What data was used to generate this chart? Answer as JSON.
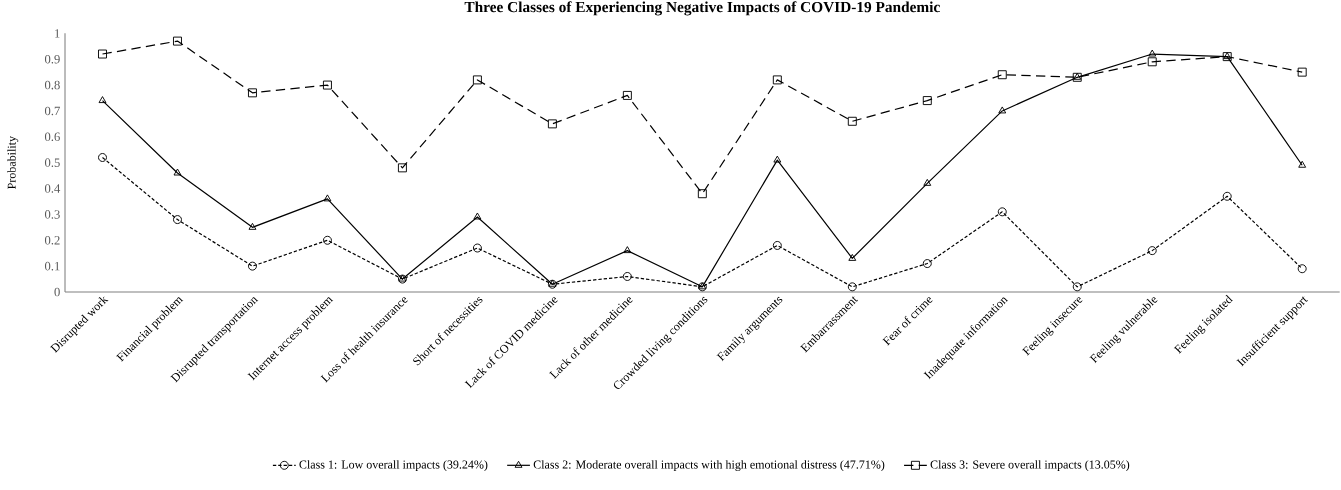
{
  "chart_data": {
    "type": "line",
    "title": "Three Classes of Experiencing Negative Impacts of COVID-19 Pandemic",
    "ylabel": "Probability",
    "categories": [
      "Disrupted work",
      "Financial problem",
      "Disrupted transportation",
      "Internet access problem",
      "Loss of health insurance",
      "Short of necessities",
      "Lack of COVID medicine",
      "Lack of other medicine",
      "Crowded living conditions",
      "Family arguments",
      "Embarrassment",
      "Fear of crime",
      "Inadequate information",
      "Feeling insecure",
      "Feeling vulnerable",
      "Feeling isolated",
      "Insufficient support"
    ],
    "series": [
      {
        "name": "Class 1: Low overall impacts (39.24%)",
        "color": "#000000",
        "marker": "circle",
        "line_style": "dotted",
        "values": [
          0.52,
          0.28,
          0.1,
          0.2,
          0.05,
          0.17,
          0.03,
          0.06,
          0.02,
          0.18,
          0.02,
          0.11,
          0.31,
          0.02,
          0.16,
          0.37,
          0.09
        ]
      },
      {
        "name": "Class 2: Moderate overall impacts with high emotional distress (47.71%)",
        "color": "#000000",
        "marker": "triangle",
        "line_style": "solid",
        "values": [
          0.74,
          0.46,
          0.25,
          0.36,
          0.05,
          0.29,
          0.03,
          0.16,
          0.02,
          0.51,
          0.13,
          0.42,
          0.7,
          0.83,
          0.92,
          0.91,
          0.49
        ]
      },
      {
        "name": "Class 3: Severe overall impacts (13.05%)",
        "color": "#000000",
        "marker": "square",
        "line_style": "dashed",
        "values": [
          0.92,
          0.97,
          0.77,
          0.8,
          0.48,
          0.82,
          0.65,
          0.76,
          0.38,
          0.82,
          0.66,
          0.74,
          0.84,
          0.83,
          0.89,
          0.91,
          0.85
        ]
      }
    ],
    "ylim": [
      0,
      1
    ],
    "yticks": [
      0,
      0.1,
      0.2,
      0.3,
      0.4,
      0.5,
      0.6,
      0.7,
      0.8,
      0.9,
      1
    ],
    "grid": false,
    "legend": "bottom"
  }
}
